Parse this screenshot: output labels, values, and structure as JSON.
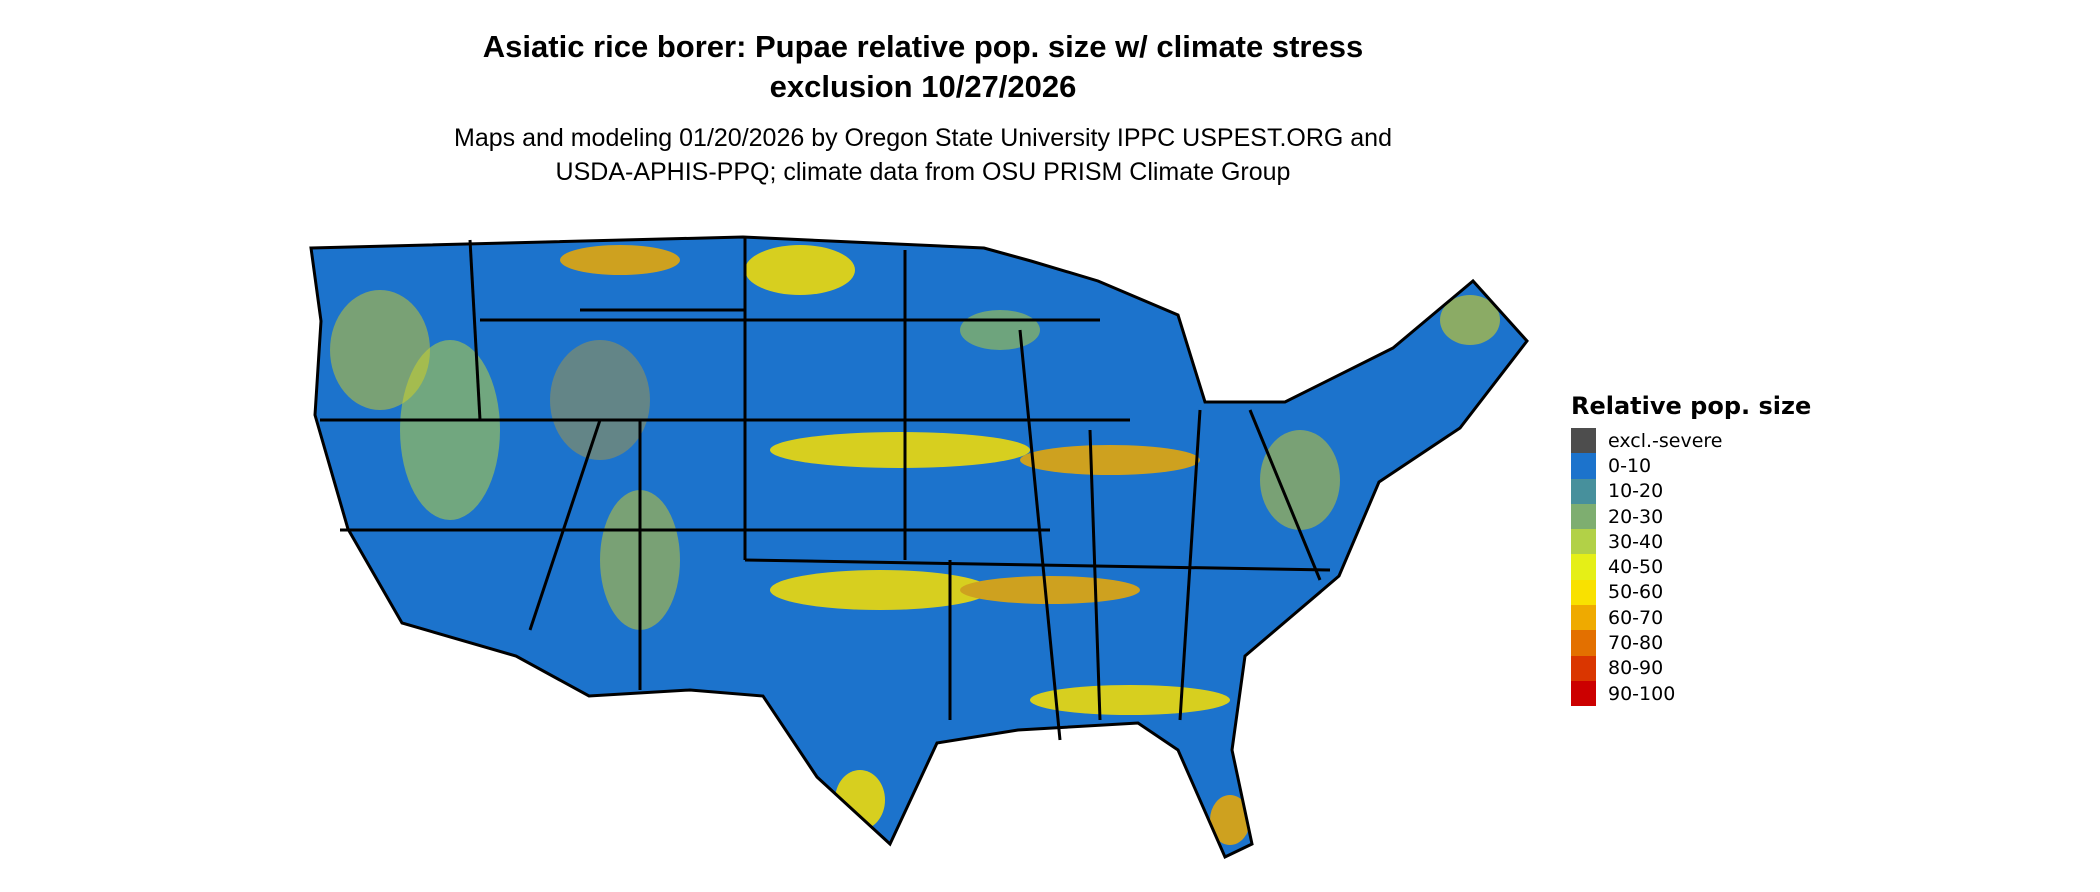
{
  "title_line1": "Asiatic rice borer: Pupae relative pop. size w/ climate stress",
  "title_line2": "exclusion 10/27/2026",
  "subtitle_line1": "Maps and modeling 01/20/2026 by Oregon State University IPPC USPEST.ORG and",
  "subtitle_line2": "USDA-APHIS-PPQ; climate data from OSU PRISM Climate Group",
  "legend": {
    "title": "Relative pop. size",
    "items": [
      {
        "label": "excl.-severe",
        "color": "#4d4d4d"
      },
      {
        "label": "0-10",
        "color": "#1c73cc"
      },
      {
        "label": "10-20",
        "color": "#47909c"
      },
      {
        "label": "20-30",
        "color": "#7eae70"
      },
      {
        "label": "30-40",
        "color": "#b2d147"
      },
      {
        "label": "40-50",
        "color": "#e5ef17"
      },
      {
        "label": "50-60",
        "color": "#f9e100"
      },
      {
        "label": "60-70",
        "color": "#efaa00"
      },
      {
        "label": "70-80",
        "color": "#e37000"
      },
      {
        "label": "80-90",
        "color": "#da3600"
      },
      {
        "label": "90-100",
        "color": "#cc0000"
      }
    ]
  }
}
